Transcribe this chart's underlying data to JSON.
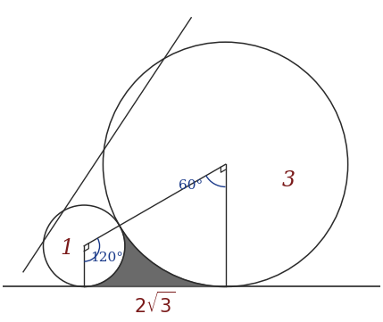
{
  "r1": 1,
  "r2": 3,
  "shade_color": "#5a5a5a",
  "line_color": "#2a2a2a",
  "label1_color": "#7a1a1a",
  "label3_color": "#7a1a1a",
  "angle_color": "#1a3a8a",
  "bg_color": "#ffffff",
  "label_1": "1",
  "label_3": "3",
  "label_angle1": "120°",
  "label_angle2": "60°"
}
